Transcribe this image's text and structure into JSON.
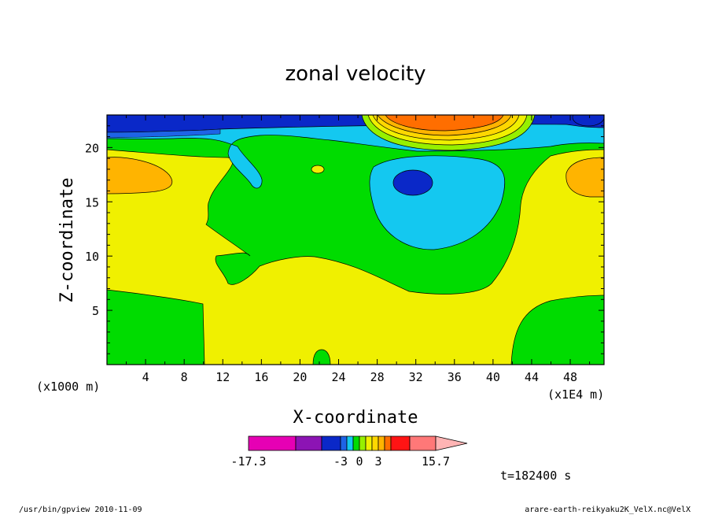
{
  "chart_data": {
    "type": "heatmap",
    "title": "zonal velocity",
    "xlabel": "X-coordinate",
    "ylabel": "Z-coordinate",
    "x_unit_left": "(x1000 m)",
    "x_unit_right": "(x1E4 m)",
    "xlim": [
      0,
      51.5
    ],
    "ylim": [
      0,
      23
    ],
    "x_ticks": [
      "4",
      "8",
      "12",
      "16",
      "20",
      "24",
      "28",
      "32",
      "36",
      "40",
      "44",
      "48"
    ],
    "y_ticks": [
      "5",
      "10",
      "15",
      "20"
    ],
    "colorbar": {
      "colors": [
        "#e600b4",
        "#8c14b4",
        "#0a28c8",
        "#1e64e6",
        "#14c8f0",
        "#00dc00",
        "#96f000",
        "#f0f000",
        "#ffd700",
        "#ffb400",
        "#ff6e00",
        "#ff1414",
        "#ff7878",
        "#ffb4b4"
      ],
      "labels": [
        "-17.3",
        "-3",
        "0",
        "3",
        "15.7"
      ]
    },
    "time_label": "t=182400 s"
  },
  "footer": {
    "left": "/usr/bin/gpview   2010-11-09",
    "right": "arare-earth-reikyaku2K_VelX.nc@VelX"
  }
}
